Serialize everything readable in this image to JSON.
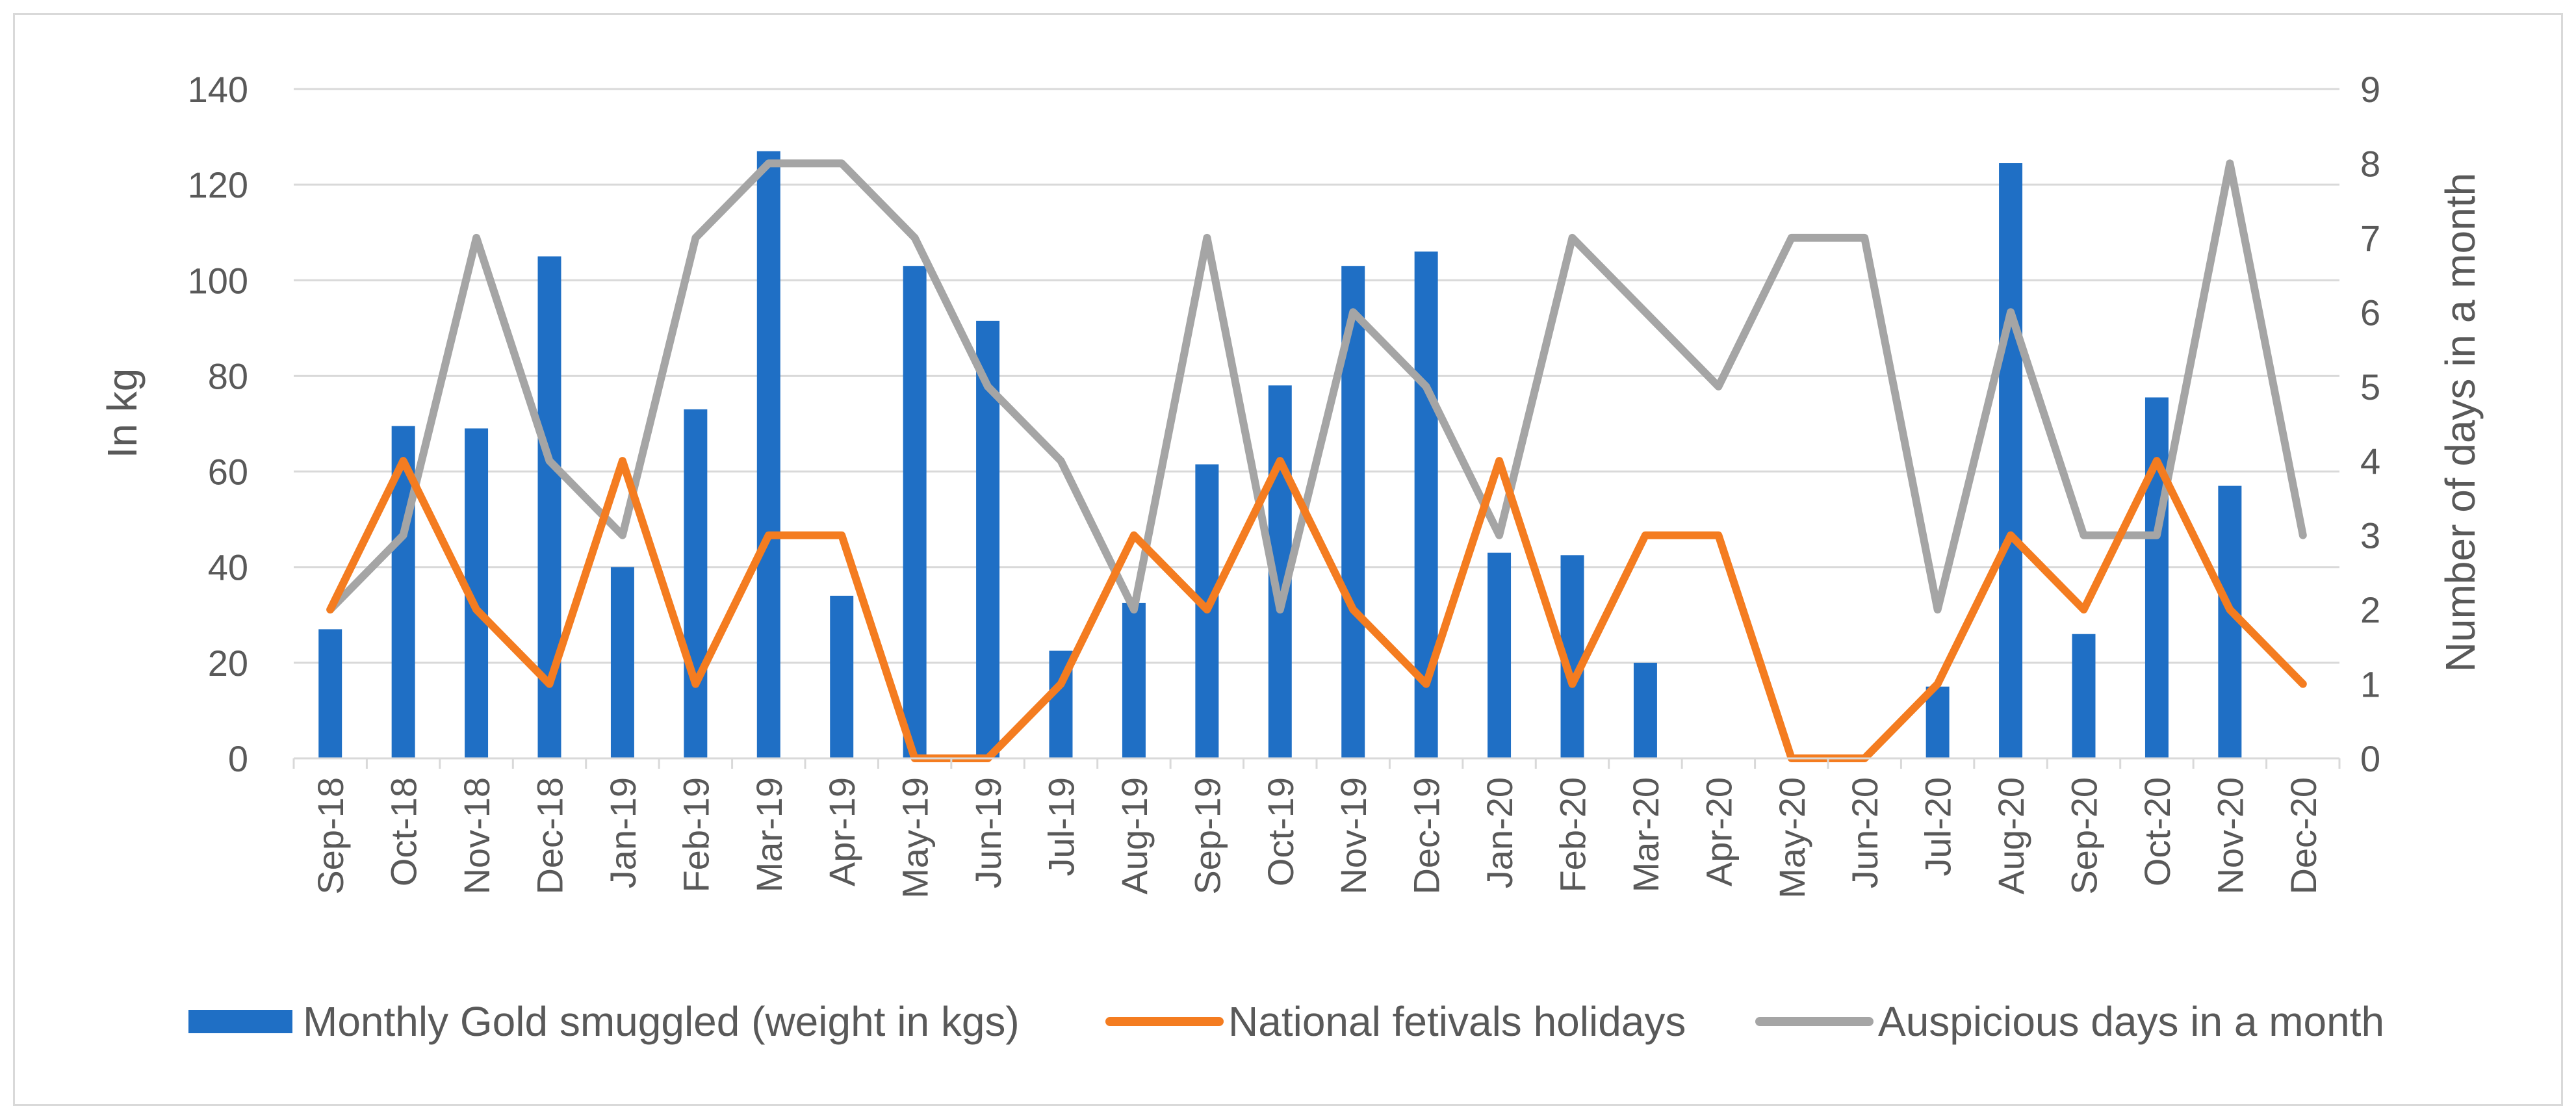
{
  "chart_data": {
    "type": "bar",
    "categories": [
      "Sep-18",
      "Oct-18",
      "Nov-18",
      "Dec-18",
      "Jan-19",
      "Feb-19",
      "Mar-19",
      "Apr-19",
      "May-19",
      "Jun-19",
      "Jul-19",
      "Aug-19",
      "Sep-19",
      "Oct-19",
      "Nov-19",
      "Dec-19",
      "Jan-20",
      "Feb-20",
      "Mar-20",
      "Apr-20",
      "May-20",
      "Jun-20",
      "Jul-20",
      "Aug-20",
      "Sep-20",
      "Oct-20",
      "Nov-20",
      "Dec-20"
    ],
    "series": [
      {
        "name": "Monthly Gold smuggled (weight in kgs)",
        "type": "bar",
        "axis": "left",
        "color": "#1f6fc5",
        "values": [
          27,
          69.5,
          69,
          105,
          40,
          73,
          127,
          34,
          103,
          91.5,
          22.5,
          32.5,
          61.5,
          78,
          103,
          106,
          43,
          42.5,
          20,
          0,
          0,
          0,
          15,
          124.5,
          26,
          75.5,
          57,
          0
        ]
      },
      {
        "name": "National fetivals holidays",
        "type": "line",
        "axis": "right",
        "color": "#f47c20",
        "values": [
          2,
          4,
          2,
          1,
          4,
          1,
          3,
          3,
          0,
          0,
          1,
          3,
          2,
          4,
          2,
          1,
          4,
          1,
          3,
          3,
          0,
          0,
          1,
          3,
          2,
          4,
          2,
          1
        ]
      },
      {
        "name": "Auspicious days in a month",
        "type": "line",
        "axis": "right",
        "color": "#a5a5a5",
        "values": [
          2,
          3,
          7,
          4,
          3,
          7,
          8,
          8,
          7,
          5,
          4,
          2,
          7,
          2,
          6,
          5,
          3,
          7,
          6,
          5,
          7,
          7,
          2,
          6,
          3,
          3,
          8,
          3
        ]
      }
    ],
    "ylabel": "In kg",
    "y2label": "Number of days in a month",
    "ylim": [
      0,
      140
    ],
    "yticks": [
      "0",
      "20",
      "40",
      "60",
      "80",
      "100",
      "120",
      "140"
    ],
    "y2lim": [
      0,
      9
    ],
    "y2ticks": [
      "0",
      "1",
      "2",
      "3",
      "4",
      "5",
      "6",
      "7",
      "8",
      "9"
    ],
    "grid": true,
    "legend": "bottom"
  }
}
